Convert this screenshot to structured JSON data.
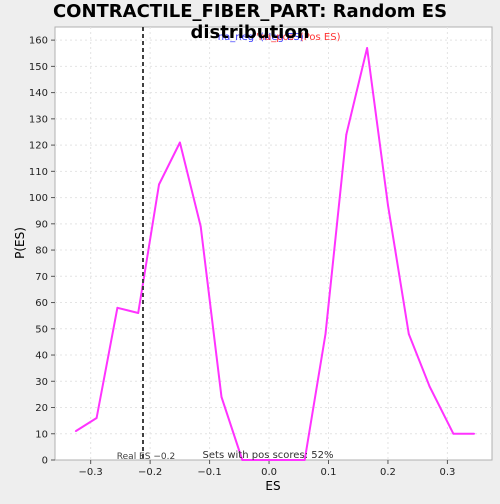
{
  "chart_data": {
    "type": "line",
    "title": "CONTRACTILE_FIBER_PART: Random ES distribution",
    "xlabel": "ES",
    "ylabel": "P(ES)",
    "xlim": [
      -0.36,
      0.375
    ],
    "ylim": [
      0,
      165
    ],
    "xticks": [
      -0.3,
      -0.2,
      -0.1,
      0.0,
      0.1,
      0.2,
      0.3
    ],
    "xtick_labels": [
      "−0.3",
      "−0.2",
      "−0.1",
      "0.0",
      "0.1",
      "0.2",
      "0.3"
    ],
    "yticks": [
      0,
      10,
      20,
      30,
      40,
      50,
      60,
      70,
      80,
      90,
      100,
      110,
      120,
      130,
      140,
      150,
      160
    ],
    "ytick_labels": [
      "0",
      "10",
      "20",
      "30",
      "40",
      "50",
      "60",
      "70",
      "80",
      "90",
      "100",
      "110",
      "120",
      "130",
      "140",
      "150",
      "160"
    ],
    "grid": true,
    "legend": {
      "position": "top-center",
      "entries": [
        {
          "text": "'na_neg' (Neg ES)",
          "color": "#3333ff"
        },
        {
          "text": "'na_pos' (Pos ES)",
          "color": "#ff3333"
        }
      ]
    },
    "series": [
      {
        "color": "#ff33ff",
        "x": [
          -0.325,
          -0.29,
          -0.255,
          -0.22,
          -0.185,
          -0.15,
          -0.115,
          -0.08,
          -0.045,
          -0.01,
          0.025,
          0.06,
          0.095,
          0.13,
          0.165,
          0.2,
          0.235,
          0.27,
          0.31,
          0.345
        ],
        "y": [
          11,
          16,
          58,
          56,
          105,
          121,
          89,
          24,
          0,
          0,
          0,
          0,
          48,
          124,
          157,
          97,
          48,
          28,
          10,
          10
        ]
      }
    ],
    "vline": {
      "x": -0.212,
      "label": "Real ES −0.2",
      "color": "#404040",
      "style": "dashed"
    },
    "annotation": "Sets with pos scores: 52%"
  }
}
